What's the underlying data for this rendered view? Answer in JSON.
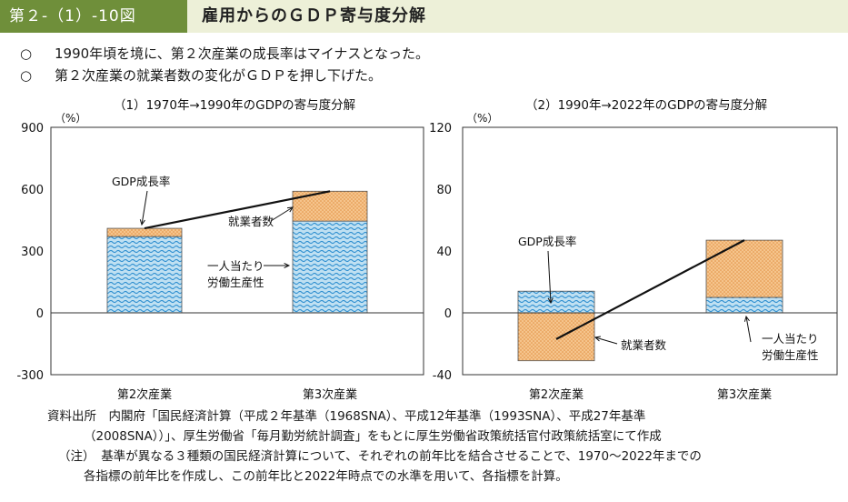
{
  "header": {
    "label": "第２-（1）-10図",
    "title": "雇用からのＧＤＰ寄与度分解"
  },
  "summary": [
    {
      "mark": "○",
      "text": "1990年頃を境に、第２次産業の成長率はマイナスとなった。"
    },
    {
      "mark": "○",
      "text": "第２次産業の就業者数の変化がＧＤＰを押し下げた。"
    }
  ],
  "colors": {
    "header_band": "#6f8f3a",
    "header_bg": "#edf0d8",
    "employment": "#f5c48c",
    "employment_dot": "#e08a3a",
    "productivity": "#bfe0f2",
    "productivity_wave": "#2f8fd0"
  },
  "chart_data": [
    {
      "type": "bar",
      "stacked": true,
      "title": "（1）1970年→1990年のGDPの寄与度分解",
      "unit": "（%）",
      "categories": [
        "第2次産業",
        "第3次産業"
      ],
      "ylim": [
        -300,
        900
      ],
      "yticks": [
        "900",
        "600",
        "300",
        "0",
        "-300"
      ],
      "series": [
        {
          "name": "一人当たり労働生産性",
          "values": [
            370,
            445
          ]
        },
        {
          "name": "就業者数",
          "values": [
            40,
            145
          ]
        }
      ],
      "line": {
        "name": "GDP成長率",
        "values": [
          410,
          590
        ]
      },
      "annotations": {
        "gdp": "GDP成長率",
        "emp": "就業者数",
        "prod1": "一人当たり",
        "prod2": "労働生産性"
      }
    },
    {
      "type": "bar",
      "stacked": true,
      "title": "（2）1990年→2022年のGDPの寄与度分解",
      "unit": "（%）",
      "categories": [
        "第2次産業",
        "第3次産業"
      ],
      "ylim": [
        -40,
        120
      ],
      "yticks": [
        "120",
        "80",
        "40",
        "0",
        "-40"
      ],
      "series": [
        {
          "name": "一人当たり労働生産性",
          "values": [
            14,
            10
          ]
        },
        {
          "name": "就業者数",
          "values": [
            -31,
            37
          ]
        }
      ],
      "line": {
        "name": "GDP成長率",
        "values": [
          -17,
          47
        ]
      },
      "annotations": {
        "gdp": "GDP成長率",
        "emp": "就業者数",
        "prod1": "一人当たり",
        "prod2": "労働生産性"
      }
    }
  ],
  "source": {
    "line1": "資料出所　内閣府「国民経済計算（平成２年基準（1968SNA）、平成12年基準（1993SNA）、平成27年基準",
    "line2": "（2008SNA））」、厚生労働省「毎月勤労統計調査」をもとに厚生労働省政策統括官付政策統括室にて作成",
    "line3": "（注）　基準が異なる３種類の国民経済計算について、それぞれの前年比を結合させることで、1970～2022年までの",
    "line4": "各指標の前年比を作成し、この前年比と2022年時点での水準を用いて、各指標を計算。"
  }
}
